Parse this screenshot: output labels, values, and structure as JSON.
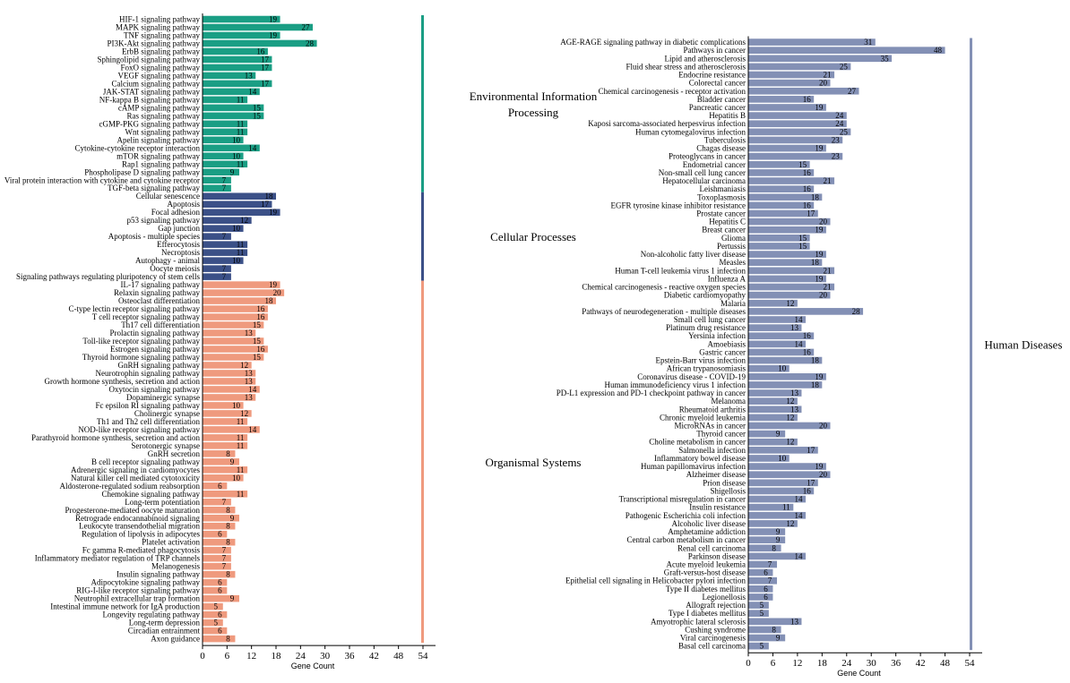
{
  "chart_data": [
    {
      "type": "bar",
      "orientation": "horizontal",
      "xlabel": "Gene Count",
      "xlim": [
        0,
        54
      ],
      "xticks": [
        0,
        6,
        12,
        18,
        24,
        30,
        36,
        42,
        48,
        54
      ],
      "groups": [
        {
          "name": "Environmental Information Processing",
          "color": "#1a9e84",
          "categories": [
            "HIF-1 signaling pathway",
            "MAPK signaling pathway",
            "TNF signaling pathway",
            "PI3K-Akt signaling pathway",
            "ErbB signaling pathway",
            "Sphingolipid signaling pathway",
            "FoxO signaling pathway",
            "VEGF signaling pathway",
            "Calcium signaling pathway",
            "JAK-STAT signaling pathway",
            "NF-kappa B signaling pathway",
            "cAMP signaling pathway",
            "Ras signaling pathway",
            "cGMP-PKG signaling pathway",
            "Wnt signaling pathway",
            "Apelin signaling pathway",
            "Cytokine-cytokine receptor interaction",
            "mTOR signaling pathway",
            "Rap1 signaling pathway",
            "Phospholipase D signaling pathway",
            "Viral protein interaction with cytokine and cytokine receptor",
            "TGF-beta signaling pathway"
          ],
          "values": [
            19,
            27,
            19,
            28,
            16,
            17,
            17,
            13,
            17,
            14,
            11,
            15,
            15,
            11,
            11,
            10,
            14,
            10,
            11,
            9,
            7,
            7
          ]
        },
        {
          "name": "Cellular Processes",
          "color": "#3b5087",
          "categories": [
            "Cellular senescence",
            "Apoptosis",
            "Focal adhesion",
            "p53 signaling pathway",
            "Gap junction",
            "Apoptosis - multiple species",
            "Efferocytosis",
            "Necroptosis",
            "Autophagy - animal",
            "Oocyte meiosis",
            "Signaling pathways regulating pluripotency of stem cells"
          ],
          "values": [
            18,
            17,
            19,
            12,
            10,
            7,
            11,
            11,
            10,
            7,
            7
          ]
        },
        {
          "name": "Organismal Systems",
          "color": "#ef9a7e",
          "categories": [
            "IL-17 signaling pathway",
            "Relaxin signaling pathway",
            "Osteoclast differentiation",
            "C-type lectin receptor signaling pathway",
            "T cell receptor signaling pathway",
            "Th17 cell differentiation",
            "Prolactin signaling pathway",
            "Toll-like receptor signaling pathway",
            "Estrogen signaling pathway",
            "Thyroid hormone signaling pathway",
            "GnRH signaling pathway",
            "Neurotrophin signaling pathway",
            "Growth hormone synthesis, secretion and action",
            "Oxytocin signaling pathway",
            "Dopaminergic synapse",
            "Fc epsilon RI signaling pathway",
            "Cholinergic synapse",
            "Th1 and Th2 cell differentiation",
            "NOD-like receptor signaling pathway",
            "Parathyroid hormone synthesis, secretion and action",
            "Serotonergic synapse",
            "GnRH secretion",
            "B cell receptor signaling pathway",
            "Adrenergic signaling in cardiomyocytes",
            "Natural killer cell mediated cytotoxicity",
            "Aldosterone-regulated sodium reabsorption",
            "Chemokine signaling pathway",
            "Long-term potentiation",
            "Progesterone-mediated oocyte maturation",
            "Retrograde endocannabinoid signaling",
            "Leukocyte transendothelial migration",
            "Regulation of lipolysis in adipocytes",
            "Platelet activation",
            "Fc gamma R-mediated phagocytosis",
            "Inflammatory mediator regulation of TRP channels",
            "Melanogenesis",
            "Insulin signaling pathway",
            "Adipocytokine signaling pathway",
            "RIG-I-like receptor signaling pathway",
            "Neutrophil extracellular trap formation",
            "Intestinal immune network for IgA production",
            "Longevity regulating pathway",
            "Long-term depression",
            "Circadian entrainment",
            "Axon guidance"
          ],
          "values": [
            19,
            20,
            18,
            16,
            16,
            15,
            13,
            15,
            16,
            15,
            12,
            13,
            13,
            14,
            13,
            10,
            12,
            11,
            14,
            11,
            11,
            8,
            9,
            11,
            10,
            6,
            11,
            7,
            8,
            9,
            8,
            6,
            8,
            7,
            7,
            7,
            8,
            6,
            6,
            9,
            5,
            6,
            5,
            6,
            8
          ]
        }
      ]
    },
    {
      "type": "bar",
      "orientation": "horizontal",
      "xlabel": "Gene Count",
      "xlim": [
        0,
        54
      ],
      "xticks": [
        0,
        6,
        12,
        18,
        24,
        30,
        36,
        42,
        48,
        54
      ],
      "groups": [
        {
          "name": "Human Diseases",
          "color": "#8390b5",
          "categories": [
            "AGE-RAGE signaling pathway in diabetic complications",
            "Pathways in cancer",
            "Lipid and atherosclerosis",
            "Fluid shear stress and atherosclerosis",
            "Endocrine resistance",
            "Colorectal cancer",
            "Chemical carcinogenesis - receptor activation",
            "Bladder cancer",
            "Pancreatic cancer",
            "Hepatitis B",
            "Kaposi sarcoma-associated herpesvirus infection",
            "Human cytomegalovirus infection",
            "Tuberculosis",
            "Chagas disease",
            "Proteoglycans in cancer",
            "Endometrial cancer",
            "Non-small cell lung cancer",
            "Hepatocellular carcinoma",
            "Leishmaniasis",
            "Toxoplasmosis",
            "EGFR tyrosine kinase inhibitor resistance",
            "Prostate cancer",
            "Hepatitis C",
            "Breast cancer",
            "Glioma",
            "Pertussis",
            "Non-alcoholic fatty liver disease",
            "Measles",
            "Human T-cell leukemia virus 1 infection",
            "Influenza A",
            "Chemical carcinogenesis - reactive oxygen species",
            "Diabetic cardiomyopathy",
            "Malaria",
            "Pathways of neurodegeneration - multiple diseases",
            "Small cell lung cancer",
            "Platinum drug resistance",
            "Yersinia infection",
            "Amoebiasis",
            "Gastric cancer",
            "Epstein-Barr virus infection",
            "African trypanosomiasis",
            "Coronavirus disease - COVID-19",
            "Human immunodeficiency virus 1 infection",
            "PD-L1 expression and PD-1 checkpoint pathway in cancer",
            "Melanoma",
            "Rheumatoid arthritis",
            "Chronic myeloid leukemia",
            "MicroRNAs in cancer",
            "Thyroid cancer",
            "Choline metabolism in cancer",
            "Salmonella infection",
            "Inflammatory bowel disease",
            "Human papillomavirus infection",
            "Alzheimer disease",
            "Prion disease",
            "Shigellosis",
            "Transcriptional misregulation in cancer",
            "Insulin resistance",
            "Pathogenic Escherichia coli infection",
            "Alcoholic liver disease",
            "Amphetamine addiction",
            "Central carbon metabolism in cancer",
            "Renal cell carcinoma",
            "Parkinson disease",
            "Acute myeloid leukemia",
            "Graft-versus-host disease",
            "Epithelial cell signaling in Helicobacter pylori infection",
            "Type II diabetes mellitus",
            "Legionellosis",
            "Allograft rejection",
            "Type I diabetes mellitus",
            "Amyotrophic lateral sclerosis",
            "Cushing syndrome",
            "Viral carcinogenesis",
            "Basal cell carcinoma"
          ],
          "values": [
            31,
            48,
            35,
            25,
            21,
            20,
            27,
            16,
            19,
            24,
            24,
            25,
            23,
            19,
            23,
            15,
            16,
            21,
            16,
            18,
            16,
            17,
            20,
            19,
            15,
            15,
            19,
            18,
            21,
            19,
            21,
            20,
            12,
            28,
            14,
            13,
            16,
            14,
            16,
            18,
            10,
            19,
            18,
            13,
            12,
            13,
            12,
            20,
            9,
            12,
            17,
            10,
            19,
            20,
            17,
            16,
            14,
            11,
            14,
            12,
            9,
            9,
            8,
            14,
            7,
            6,
            7,
            6,
            6,
            5,
            5,
            13,
            8,
            9,
            5
          ]
        }
      ]
    }
  ]
}
